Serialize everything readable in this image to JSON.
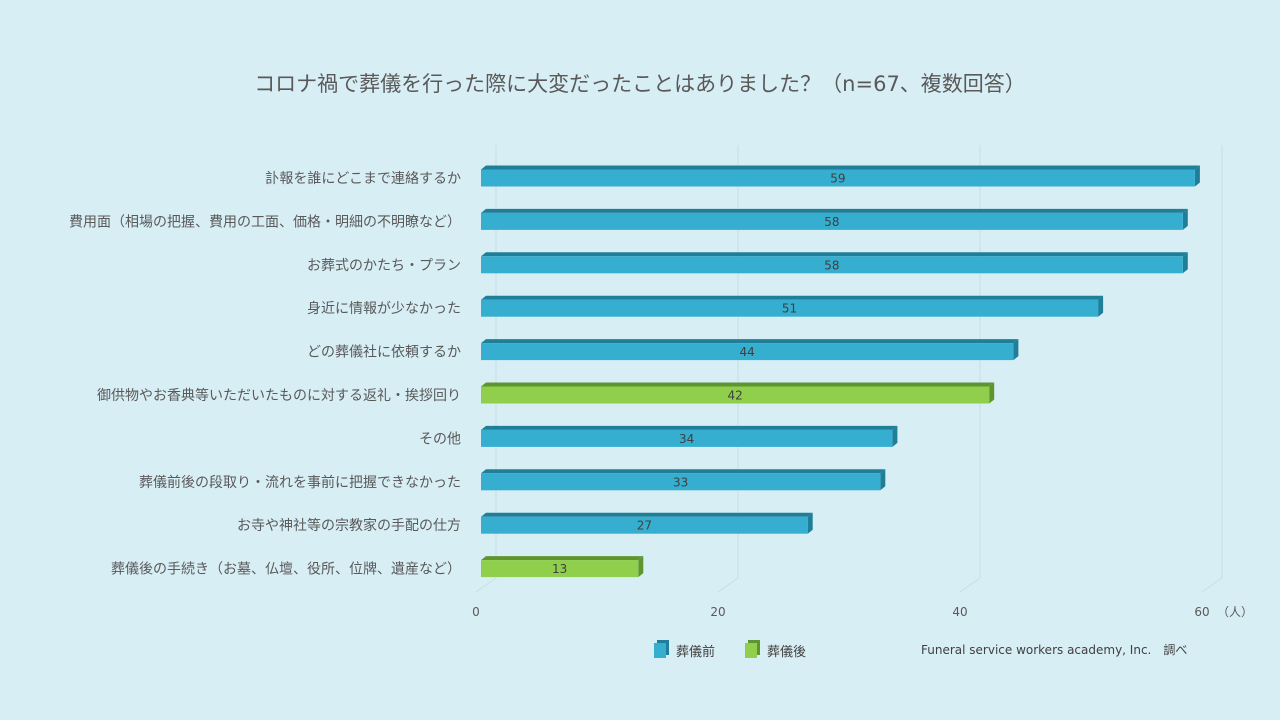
{
  "chart_data": {
    "type": "bar",
    "orientation": "horizontal",
    "title": "コロナ禍で葬儀を行った際に大変だったことはありました？（n=67、複数回答）",
    "categories": [
      "訃報を誰にどこまで連絡するか",
      "費用面（相場の把握、費用の工面、価格・明細の不明瞭など）",
      "お葬式のかたち・プラン",
      "身近に情報が少なかった",
      "どの葬儀社に依頼するか",
      "御供物やお香典等いただいたものに対する返礼・挨拶回り",
      "その他",
      "葬儀前後の段取り・流れを事前に把握できなかった",
      "お寺や神社等の宗教家の手配の仕方",
      "葬儀後の手続き（お墓、仏壇、役所、位牌、遺産など）"
    ],
    "values": [
      59,
      58,
      58,
      51,
      44,
      42,
      34,
      33,
      27,
      13
    ],
    "series_of_each": [
      "before",
      "before",
      "before",
      "before",
      "before",
      "after",
      "before",
      "before",
      "before",
      "after"
    ],
    "series": [
      {
        "key": "before",
        "name": "葬儀前",
        "color": "#36aed0",
        "dark": "#1f7f99"
      },
      {
        "key": "after",
        "name": "葬儀後",
        "color": "#8fcf4b",
        "dark": "#5e9530"
      }
    ],
    "x_ticks": [
      "0",
      "20",
      "40",
      "60"
    ],
    "xlim": [
      0,
      60
    ],
    "xlabel": "（人）",
    "grid": true,
    "legend": "bottom"
  },
  "source": "Funeral service workers  academy, Inc.　調べ"
}
